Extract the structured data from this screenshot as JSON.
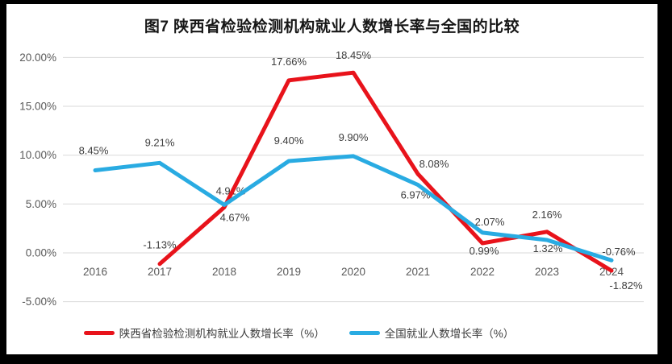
{
  "chart_data": {
    "type": "line",
    "title": "图7 陕西省检验检测机构就业人数增长率与全国的比较",
    "categories": [
      "2016",
      "2017",
      "2018",
      "2019",
      "2020",
      "2021",
      "2022",
      "2023",
      "2024"
    ],
    "series": [
      {
        "name": "陕西省检验检测机构就业人数增长率（%）",
        "color": "#e8131b",
        "values": [
          null,
          -1.13,
          4.67,
          17.66,
          18.45,
          8.08,
          0.99,
          2.16,
          -1.82
        ],
        "labels": [
          "",
          "-1.13%",
          "4.67%",
          "17.66%",
          "18.45%",
          "8.08%",
          "0.99%",
          "2.16%",
          "-1.82%"
        ]
      },
      {
        "name": "全国就业人数增长率（%）",
        "color": "#29abe2",
        "values": [
          8.45,
          9.21,
          4.91,
          9.4,
          9.9,
          6.97,
          2.07,
          1.32,
          -0.76
        ],
        "labels": [
          "8.45%",
          "9.21%",
          "4.91%",
          "9.40%",
          "9.90%",
          "6.97%",
          "2.07%",
          "1.32%",
          "-0.76%"
        ]
      }
    ],
    "y_axis": {
      "min": -5,
      "max": 20,
      "ticks": [
        {
          "value": 20,
          "label": "20.00%"
        },
        {
          "value": 15,
          "label": "15.00%"
        },
        {
          "value": 10,
          "label": "10.00%"
        },
        {
          "value": 5,
          "label": "5.00%"
        },
        {
          "value": 0,
          "label": "0.00%"
        },
        {
          "value": -5,
          "label": "-5.00%"
        }
      ]
    },
    "grid": "horizontal",
    "legend_position": "bottom",
    "colors": {
      "gridline": "#d9d9d9",
      "tick_text": "#595959",
      "data_label": "#3d3d3d"
    }
  }
}
